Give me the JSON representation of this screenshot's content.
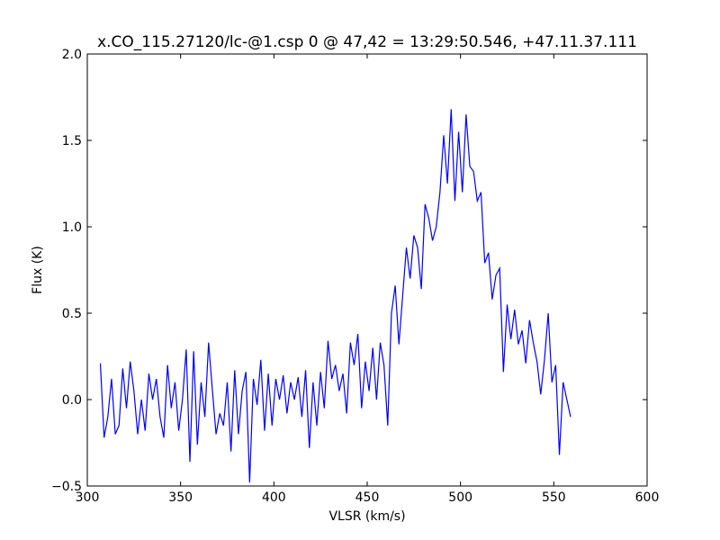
{
  "chart_data": {
    "type": "line",
    "title": "x.CO_115.27120/lc-@1.csp 0 @ 47,42 = 13:29:50.546, +47.11.37.111",
    "xlabel": "VLSR (km/s)",
    "ylabel": "Flux (K)",
    "x": [
      307,
      309,
      311,
      313,
      315,
      317,
      319,
      321,
      323,
      325,
      327,
      329,
      331,
      333,
      335,
      337,
      339,
      341,
      343,
      345,
      347,
      349,
      351,
      353,
      355,
      357,
      359,
      361,
      363,
      365,
      367,
      369,
      371,
      373,
      375,
      377,
      379,
      381,
      383,
      385,
      387,
      389,
      391,
      393,
      395,
      397,
      399,
      401,
      403,
      405,
      407,
      409,
      411,
      413,
      415,
      417,
      419,
      421,
      423,
      425,
      427,
      429,
      431,
      433,
      435,
      437,
      439,
      441,
      443,
      445,
      447,
      449,
      451,
      453,
      455,
      457,
      459,
      461,
      463,
      465,
      467,
      469,
      471,
      473,
      475,
      477,
      479,
      481,
      483,
      485,
      487,
      489,
      491,
      493,
      495,
      497,
      499,
      501,
      503,
      505,
      507,
      509,
      511,
      513,
      515,
      517,
      519,
      521,
      523,
      525,
      527,
      529,
      531,
      533,
      535,
      537,
      539,
      541,
      543,
      545,
      547,
      549,
      551,
      553,
      555,
      557,
      559
    ],
    "series": [
      {
        "color": "#0000ff",
        "values": [
          0.21,
          -0.22,
          -0.1,
          0.12,
          -0.2,
          -0.15,
          0.18,
          -0.05,
          0.22,
          0.05,
          -0.2,
          0.0,
          -0.18,
          0.15,
          0.0,
          0.12,
          -0.1,
          -0.22,
          0.2,
          -0.05,
          0.1,
          -0.18,
          0.0,
          0.29,
          -0.36,
          0.28,
          -0.26,
          0.1,
          -0.1,
          0.33,
          0.06,
          -0.2,
          -0.08,
          -0.15,
          0.1,
          -0.3,
          0.17,
          -0.2,
          0.05,
          0.16,
          -0.48,
          0.12,
          -0.03,
          0.23,
          -0.18,
          0.15,
          -0.15,
          0.12,
          0.0,
          0.14,
          -0.08,
          0.1,
          0.0,
          0.13,
          -0.1,
          0.17,
          -0.28,
          0.1,
          -0.15,
          0.16,
          -0.05,
          0.34,
          0.12,
          0.2,
          0.05,
          0.15,
          -0.08,
          0.33,
          0.2,
          0.38,
          -0.05,
          0.22,
          0.05,
          0.3,
          0.0,
          0.33,
          0.2,
          -0.15,
          0.5,
          0.66,
          0.32,
          0.6,
          0.88,
          0.7,
          0.95,
          0.88,
          0.64,
          1.13,
          1.05,
          0.92,
          1.0,
          1.2,
          1.53,
          1.25,
          1.68,
          1.15,
          1.55,
          1.2,
          1.65,
          1.35,
          1.32,
          1.15,
          1.2,
          0.79,
          0.85,
          0.58,
          0.72,
          0.76,
          0.16,
          0.55,
          0.35,
          0.52,
          0.32,
          0.4,
          0.21,
          0.46,
          0.33,
          0.22,
          0.03,
          0.23,
          0.5,
          0.1,
          0.2,
          -0.32,
          0.1,
          0.0,
          -0.1
        ]
      }
    ],
    "xlim": [
      300,
      600
    ],
    "xticks": [
      300,
      350,
      400,
      450,
      500,
      550,
      600
    ],
    "ylim": [
      -0.5,
      2.0
    ],
    "yticks": [
      {
        "value": -0.5,
        "label": "−0.5"
      },
      {
        "value": 0,
        "label": "0.0"
      },
      {
        "value": 0.5,
        "label": "0.5"
      },
      {
        "value": 1,
        "label": "1.0"
      },
      {
        "value": 1.5,
        "label": "1.5"
      },
      {
        "value": 2,
        "label": "2.0"
      }
    ],
    "grid": false
  }
}
